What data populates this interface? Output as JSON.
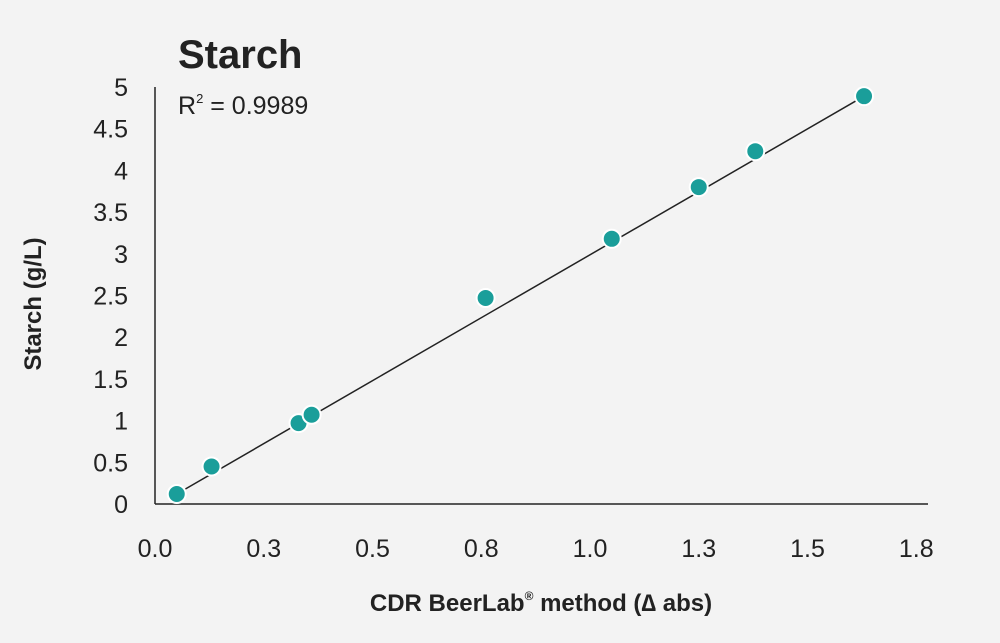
{
  "chart_data": {
    "type": "scatter",
    "title": "Starch",
    "annotation": {
      "prefix": "R",
      "superscript": "2",
      "suffix": " = 0.9989"
    },
    "xlabel": {
      "prefix": "CDR BeerLab",
      "superscript": "®",
      "suffix": " method (∆ abs)"
    },
    "ylabel": "Starch (g/L)",
    "xlim": [
      0,
      1.8
    ],
    "ylim": [
      0,
      5
    ],
    "x_ticks": [
      0,
      0.25,
      0.5,
      0.75,
      1.0,
      1.25,
      1.5,
      1.75
    ],
    "x_tick_labels": [
      "0.0",
      "0.3",
      "0.5",
      "0.8",
      "1.0",
      "1.3",
      "1.5",
      "1.8"
    ],
    "y_ticks": [
      0,
      0.5,
      1,
      1.5,
      2,
      2.5,
      3,
      3.5,
      4,
      4.5,
      5
    ],
    "y_tick_labels": [
      "0",
      "0.5",
      "1",
      "1.5",
      "2",
      "2.5",
      "3",
      "3.5",
      "4",
      "4.5",
      "5"
    ],
    "grid": false,
    "series": [
      {
        "x": [
          0.05,
          0.13,
          0.33,
          0.36,
          0.76,
          1.05,
          1.25,
          1.38,
          1.63
        ],
        "y": [
          0.12,
          0.45,
          0.97,
          1.07,
          2.47,
          3.18,
          3.8,
          4.23,
          4.89
        ],
        "color": "#1a9e9a"
      }
    ],
    "trendline": {
      "x": [
        0.05,
        1.63
      ],
      "y": [
        0.12,
        4.89
      ],
      "color": "#222222"
    }
  }
}
